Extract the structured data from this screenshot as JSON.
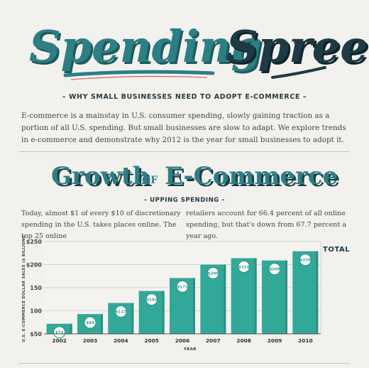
{
  "header": {
    "title_part1": "Spending",
    "title_part2": "Spree",
    "subtitle": "– WHY SMALL BUSINESSES NEED TO ADOPT E-COMMERCE –",
    "intro": "E-commerce is a mainstay in U.S. consumer spending, slowly gaining traction as a portion of all U.S. spending. But small businesses are slow to adapt. We explore trends in e-commerce and demonstrate why 2012 is the year for small businesses to adopt it."
  },
  "section": {
    "title_word1": "Growth",
    "title_of": "OF",
    "title_word2": "E-Commerce",
    "subtitle": "– UPPING SPENDING –",
    "col1": "Today, almost $1 of every $10 of discretionary spending in the U.S. takes places online. The top 25 online",
    "col2": "retailers account for 66.4 percent of all online spending, but that's down from 67.7 percent a year ago."
  },
  "colors": {
    "teal": "#2d8f84",
    "title_teal": "#2c7f84",
    "title_dark": "#1e3b45",
    "bar": "#32a898",
    "bar_dark": "#2a9184",
    "label_text": "#2a9c8c"
  },
  "chart_data": {
    "type": "bar",
    "categories": [
      "2002",
      "2003",
      "2004",
      "2005",
      "2006",
      "2007",
      "2008",
      "2009",
      "2010"
    ],
    "values": [
      72,
      93,
      117,
      143,
      171,
      200,
      214,
      209,
      229
    ],
    "data_labels": [
      "$72",
      "$93",
      "$117",
      "$143",
      "$171",
      "$200",
      "$214",
      "$209",
      "$229"
    ],
    "ylabel": "U.S. E-COMMERCE DOLLAR SALES ($ BILLIONS)",
    "xlabel": "YEAR",
    "yticks": [
      50,
      100,
      150,
      200,
      250
    ],
    "ytick_labels": [
      "$50",
      "100",
      "150",
      "$200",
      "$250"
    ],
    "ylim": [
      50,
      250
    ],
    "total_label": "TOTAL",
    "grid": true
  }
}
